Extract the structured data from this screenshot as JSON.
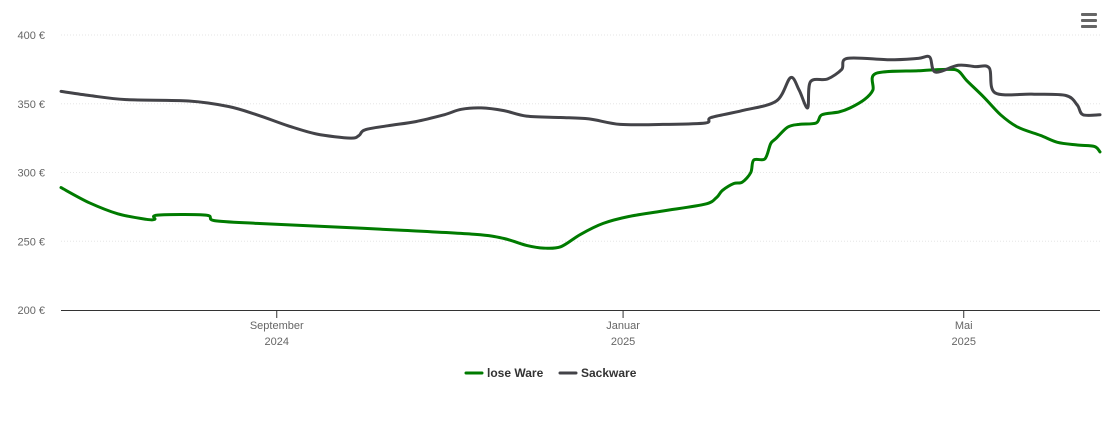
{
  "chart_data": {
    "type": "line",
    "title": "",
    "xlabel": "",
    "ylabel": "",
    "ylim": [
      200,
      400
    ],
    "yticks": [
      {
        "value": 200,
        "label": "200 €"
      },
      {
        "value": 250,
        "label": "250 €"
      },
      {
        "value": 300,
        "label": "300 €"
      },
      {
        "value": 350,
        "label": "350 €"
      },
      {
        "value": 400,
        "label": "400 €"
      }
    ],
    "xlim": [
      "2024-06-17",
      "2025-06-18"
    ],
    "xticks": [
      {
        "date": "2024-09-01",
        "line1": "September",
        "line2": "2024"
      },
      {
        "date": "2025-01-01",
        "line1": "Januar",
        "line2": "2025"
      },
      {
        "date": "2025-05-01",
        "line1": "Mai",
        "line2": "2025"
      }
    ],
    "grid": true,
    "legend": "bottom-center",
    "series": [
      {
        "name": "lose Ware",
        "color": "#007b00",
        "points": [
          [
            "2024-06-17",
            289
          ],
          [
            "2024-06-27",
            278
          ],
          [
            "2024-07-07",
            270
          ],
          [
            "2024-07-17",
            266
          ],
          [
            "2024-07-20",
            266
          ],
          [
            "2024-07-21",
            269
          ],
          [
            "2024-08-07",
            269
          ],
          [
            "2024-08-10",
            265
          ],
          [
            "2024-08-25",
            263
          ],
          [
            "2024-09-15",
            261
          ],
          [
            "2024-10-15",
            258
          ],
          [
            "2024-11-10",
            255
          ],
          [
            "2024-11-20",
            252
          ],
          [
            "2024-11-28",
            247
          ],
          [
            "2024-12-04",
            245
          ],
          [
            "2024-12-10",
            246
          ],
          [
            "2024-12-17",
            255
          ],
          [
            "2024-12-25",
            263
          ],
          [
            "2025-01-03",
            268
          ],
          [
            "2025-01-15",
            272
          ],
          [
            "2025-01-30",
            277
          ],
          [
            "2025-02-03",
            282
          ],
          [
            "2025-02-05",
            287
          ],
          [
            "2025-02-09",
            292
          ],
          [
            "2025-02-12",
            293
          ],
          [
            "2025-02-15",
            300
          ],
          [
            "2025-02-16",
            309
          ],
          [
            "2025-02-20",
            310
          ],
          [
            "2025-02-22",
            321
          ],
          [
            "2025-02-24",
            325
          ],
          [
            "2025-02-28",
            333
          ],
          [
            "2025-03-04",
            335
          ],
          [
            "2025-03-10",
            336
          ],
          [
            "2025-03-12",
            342
          ],
          [
            "2025-03-18",
            344
          ],
          [
            "2025-03-22",
            347
          ],
          [
            "2025-03-27",
            353
          ],
          [
            "2025-03-30",
            360
          ],
          [
            "2025-03-31",
            372
          ],
          [
            "2025-04-15",
            374
          ],
          [
            "2025-04-25",
            375
          ],
          [
            "2025-04-29",
            374
          ],
          [
            "2025-05-02",
            367
          ],
          [
            "2025-05-08",
            355
          ],
          [
            "2025-05-14",
            342
          ],
          [
            "2025-05-20",
            333
          ],
          [
            "2025-05-28",
            327
          ],
          [
            "2025-06-03",
            322
          ],
          [
            "2025-06-10",
            320
          ],
          [
            "2025-06-16",
            319
          ],
          [
            "2025-06-18",
            315
          ]
        ]
      },
      {
        "name": "Sackware",
        "color": "#434348",
        "points": [
          [
            "2024-06-17",
            359
          ],
          [
            "2024-06-27",
            356
          ],
          [
            "2024-07-10",
            353
          ],
          [
            "2024-08-01",
            352
          ],
          [
            "2024-08-15",
            348
          ],
          [
            "2024-08-25",
            342
          ],
          [
            "2024-09-05",
            334
          ],
          [
            "2024-09-15",
            328
          ],
          [
            "2024-09-27",
            325
          ],
          [
            "2024-09-30",
            327
          ],
          [
            "2024-10-02",
            331
          ],
          [
            "2024-10-10",
            334
          ],
          [
            "2024-10-20",
            337
          ],
          [
            "2024-10-30",
            342
          ],
          [
            "2024-11-05",
            346
          ],
          [
            "2024-11-12",
            347
          ],
          [
            "2024-11-20",
            345
          ],
          [
            "2024-11-28",
            341
          ],
          [
            "2024-12-10",
            340
          ],
          [
            "2024-12-20",
            339
          ],
          [
            "2024-12-31",
            335
          ],
          [
            "2025-01-15",
            335
          ],
          [
            "2025-01-30",
            336
          ],
          [
            "2025-02-01",
            340
          ],
          [
            "2025-02-12",
            345
          ],
          [
            "2025-02-24",
            352
          ],
          [
            "2025-03-01",
            369
          ],
          [
            "2025-03-04",
            360
          ],
          [
            "2025-03-07",
            347
          ],
          [
            "2025-03-08",
            366
          ],
          [
            "2025-03-14",
            368
          ],
          [
            "2025-03-19",
            375
          ],
          [
            "2025-03-21",
            383
          ],
          [
            "2025-04-05",
            382
          ],
          [
            "2025-04-15",
            383
          ],
          [
            "2025-04-19",
            384
          ],
          [
            "2025-04-21",
            373
          ],
          [
            "2025-04-29",
            378
          ],
          [
            "2025-05-05",
            377
          ],
          [
            "2025-05-10",
            376
          ],
          [
            "2025-05-12",
            358
          ],
          [
            "2025-05-25",
            357
          ],
          [
            "2025-06-06",
            356
          ],
          [
            "2025-06-10",
            349
          ],
          [
            "2025-06-12",
            342
          ],
          [
            "2025-06-18",
            342
          ]
        ]
      }
    ]
  },
  "menu": {
    "icon": "hamburger-icon"
  }
}
